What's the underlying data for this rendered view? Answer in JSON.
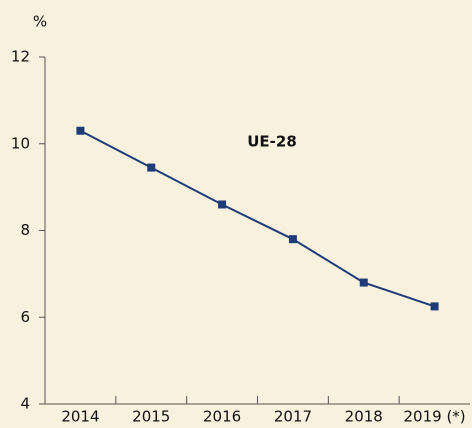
{
  "chart_data": {
    "type": "line",
    "y_label": "%",
    "annotation": "UE-28",
    "categories": [
      "2014",
      "2015",
      "2016",
      "2017",
      "2018",
      "2019 (*)"
    ],
    "series": [
      {
        "name": "UE-28",
        "color": "#1f3c78",
        "values": [
          10.3,
          9.45,
          8.6,
          7.8,
          6.8,
          6.25
        ]
      }
    ],
    "ylim": [
      4,
      12
    ],
    "yticks": [
      4,
      6,
      8,
      10,
      12
    ],
    "grid": false
  }
}
